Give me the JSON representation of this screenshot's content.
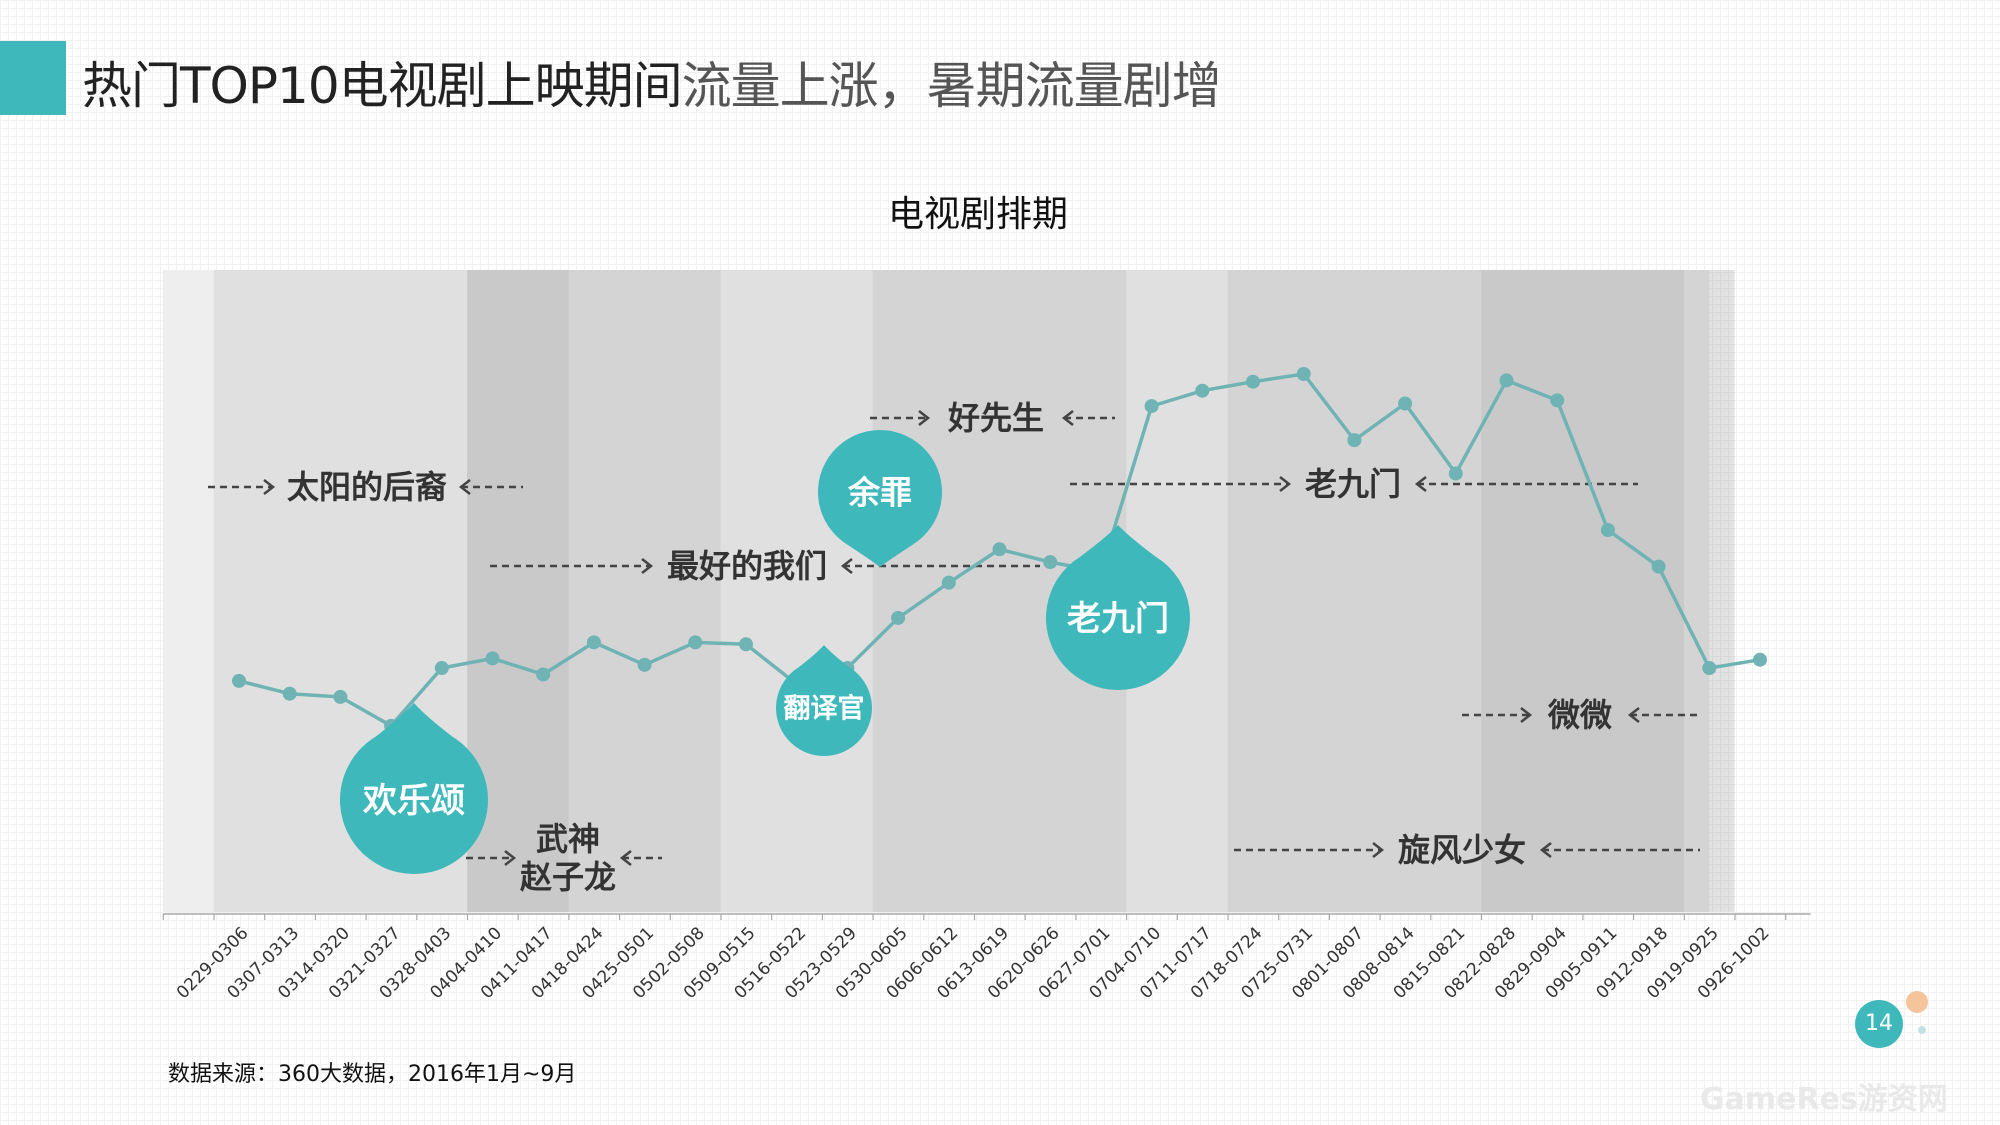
{
  "slide": {
    "title_main": "热门TOP10电视剧上映期间",
    "title_rest": "流量上涨，暑期流量剧增",
    "source_note": "数据来源：360大数据，2016年1月~9月",
    "page_number": "14",
    "watermark": "GameRes游资网"
  },
  "colors": {
    "accent": "#3fb8bb",
    "line": "#6fb3b5",
    "arrow": "#444444",
    "label": "#333333"
  },
  "chart_data": {
    "type": "line",
    "title": "电视剧排期",
    "categories": [
      "0229-0306",
      "0307-0313",
      "0314-0320",
      "0321-0327",
      "0328-0403",
      "0404-0410",
      "0411-0417",
      "0418-0424",
      "0425-0501",
      "0502-0508",
      "0509-0515",
      "0516-0522",
      "0523-0529",
      "0530-0605",
      "0606-0612",
      "0613-0619",
      "0620-0626",
      "0627-0701",
      "0704-0710",
      "0711-0717",
      "0718-0724",
      "0725-0731",
      "0801-0807",
      "0808-0814",
      "0815-0821",
      "0822-0828",
      "0829-0904",
      "0905-0911",
      "0912-0918",
      "0919-0925",
      "0926-1002"
    ],
    "values": [
      36,
      34,
      33.5,
      29,
      38,
      39.5,
      37,
      42,
      38.5,
      42,
      41.7,
      35.5,
      38,
      45.8,
      51.3,
      56.5,
      54.5,
      53,
      78.8,
      81.2,
      82.6,
      83.8,
      73.5,
      79.2,
      68.3,
      82.8,
      79.7,
      59.5,
      53.8,
      38,
      39.3
    ],
    "ylim": [
      0,
      100
    ],
    "grid": false,
    "shows": [
      {
        "name": "太阳的后裔",
        "start": 0,
        "end": 6
      },
      {
        "name": "武神赵子龙",
        "lines": [
          "武神",
          "赵子龙"
        ],
        "start": 5,
        "end": 9
      },
      {
        "name": "最好的我们",
        "start": 5,
        "end": 16
      },
      {
        "name": "好先生",
        "start": 13,
        "end": 17
      },
      {
        "name": "老九门",
        "start": 17,
        "end": 28
      },
      {
        "name": "微微",
        "start": 25,
        "end": 29
      },
      {
        "name": "旋风少女",
        "start": 20,
        "end": 29
      }
    ],
    "markers": [
      {
        "label": "欢乐颂",
        "index": 3
      },
      {
        "label": "翻译官",
        "index": 12
      },
      {
        "label": "余罪",
        "index": 13
      },
      {
        "label": "老九门",
        "index": 17
      }
    ]
  }
}
